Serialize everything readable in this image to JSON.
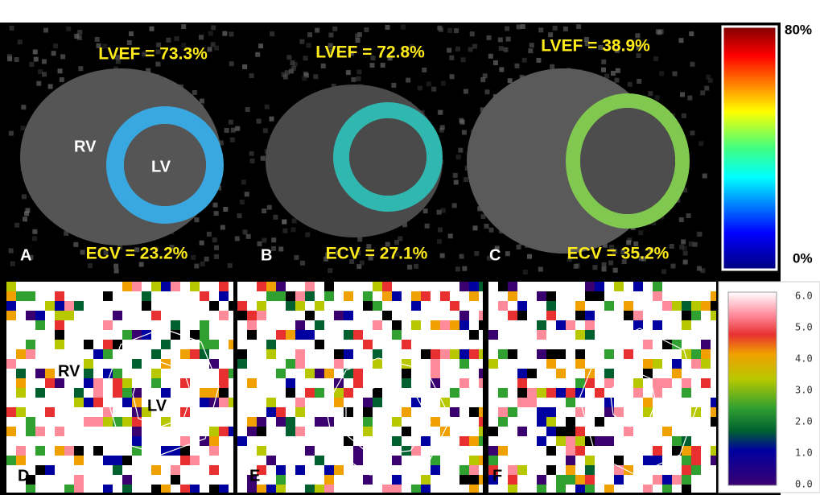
{
  "panels_top": [
    {
      "letter": "A",
      "lvef": "LVEF = 73.3%",
      "ecv": "ECV = 23.2%",
      "rv": "RV",
      "lv": "LV"
    },
    {
      "letter": "B",
      "lvef": "LVEF = 72.8%",
      "ecv": "ECV = 27.1%"
    },
    {
      "letter": "C",
      "lvef": "LVEF = 38.9%",
      "ecv": "ECV = 35.2%"
    }
  ],
  "scale_top": {
    "max": "80%",
    "min": "0%"
  },
  "panels_bottom": [
    {
      "letter": "D",
      "rv": "RV",
      "lv": "LV"
    },
    {
      "letter": "E"
    },
    {
      "letter": "F"
    }
  ],
  "scale_bottom": {
    "labels": [
      "6.0",
      "5.0",
      "4.0",
      "3.0",
      "2.0",
      "1.0",
      "0.0"
    ]
  }
}
